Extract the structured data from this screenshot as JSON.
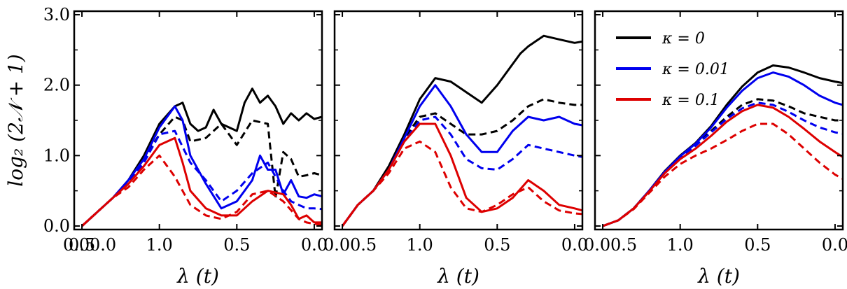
{
  "chart_data": [
    {
      "type": "line",
      "panel": "left",
      "title": "",
      "xlabel": "λ (t)",
      "ylabel": "log₂ (2𝒩 + 1)",
      "x_tick_labels": [
        "0.0",
        "0.0",
        "0.5",
        "1.0",
        "0.5",
        "0.0"
      ],
      "y_tick_labels": [
        "0.0",
        "1.0",
        "2.0",
        "3.0"
      ],
      "xlim": [
        -0.05,
        1.55
      ],
      "ylim": [
        -0.05,
        3.05
      ],
      "series": [
        {
          "name": "κ = 0 (solid)",
          "color": "#000000",
          "dash": "solid",
          "x": [
            0,
            0.1,
            0.2,
            0.3,
            0.4,
            0.5,
            0.6,
            0.65,
            0.7,
            0.75,
            0.8,
            0.85,
            0.9,
            1.0,
            1.05,
            1.1,
            1.15,
            1.2,
            1.25,
            1.3,
            1.35,
            1.4,
            1.45,
            1.5,
            1.55
          ],
          "y": [
            0,
            0.2,
            0.4,
            0.65,
            1.0,
            1.45,
            1.7,
            1.75,
            1.45,
            1.35,
            1.4,
            1.65,
            1.45,
            1.35,
            1.75,
            1.95,
            1.75,
            1.85,
            1.7,
            1.45,
            1.6,
            1.5,
            1.6,
            1.52,
            1.55
          ]
        },
        {
          "name": "κ = 0 (dashed)",
          "color": "#000000",
          "dash": "dashed",
          "x": [
            0,
            0.1,
            0.2,
            0.3,
            0.4,
            0.5,
            0.6,
            0.65,
            0.7,
            0.8,
            0.9,
            1.0,
            1.1,
            1.2,
            1.25,
            1.3,
            1.35,
            1.4,
            1.45,
            1.5,
            1.55
          ],
          "y": [
            0,
            0.2,
            0.4,
            0.6,
            0.95,
            1.3,
            1.55,
            1.5,
            1.2,
            1.25,
            1.45,
            1.15,
            1.5,
            1.45,
            0.4,
            1.05,
            0.95,
            0.7,
            0.72,
            0.75,
            0.72
          ]
        },
        {
          "name": "κ = 0.01 (solid)",
          "color": "#0000ee",
          "dash": "solid",
          "x": [
            0,
            0.1,
            0.2,
            0.3,
            0.4,
            0.5,
            0.6,
            0.65,
            0.7,
            0.8,
            0.9,
            1.0,
            1.05,
            1.1,
            1.15,
            1.2,
            1.25,
            1.3,
            1.35,
            1.4,
            1.45,
            1.5,
            1.55
          ],
          "y": [
            0,
            0.2,
            0.4,
            0.65,
            0.95,
            1.4,
            1.7,
            1.5,
            1.0,
            0.6,
            0.25,
            0.35,
            0.5,
            0.65,
            1.0,
            0.8,
            0.8,
            0.45,
            0.65,
            0.42,
            0.4,
            0.45,
            0.42
          ]
        },
        {
          "name": "κ = 0.01 (dashed)",
          "color": "#0000ee",
          "dash": "dashed",
          "x": [
            0,
            0.1,
            0.2,
            0.3,
            0.4,
            0.5,
            0.6,
            0.7,
            0.8,
            0.9,
            1.0,
            1.1,
            1.2,
            1.3,
            1.35,
            1.4,
            1.45,
            1.5,
            1.55
          ],
          "y": [
            0,
            0.2,
            0.4,
            0.6,
            0.9,
            1.3,
            1.35,
            0.9,
            0.65,
            0.35,
            0.5,
            0.75,
            0.9,
            0.5,
            0.35,
            0.3,
            0.25,
            0.25,
            0.24
          ]
        },
        {
          "name": "κ = 0.1 (solid)",
          "color": "#dd0000",
          "dash": "solid",
          "x": [
            0,
            0.1,
            0.2,
            0.3,
            0.4,
            0.5,
            0.6,
            0.65,
            0.7,
            0.8,
            0.9,
            1.0,
            1.1,
            1.2,
            1.3,
            1.35,
            1.4,
            1.45,
            1.5,
            1.55
          ],
          "y": [
            0,
            0.2,
            0.4,
            0.6,
            0.85,
            1.15,
            1.25,
            0.9,
            0.5,
            0.25,
            0.15,
            0.15,
            0.35,
            0.5,
            0.45,
            0.3,
            0.1,
            0.15,
            0.05,
            0.05
          ]
        },
        {
          "name": "κ = 0.1 (dashed)",
          "color": "#dd0000",
          "dash": "dashed",
          "x": [
            0,
            0.1,
            0.2,
            0.3,
            0.4,
            0.5,
            0.6,
            0.7,
            0.8,
            0.9,
            1.0,
            1.1,
            1.2,
            1.3,
            1.4,
            1.45,
            1.5,
            1.55
          ],
          "y": [
            0,
            0.2,
            0.4,
            0.55,
            0.8,
            1.0,
            0.7,
            0.3,
            0.15,
            0.1,
            0.2,
            0.45,
            0.5,
            0.35,
            0.1,
            0.05,
            0.03,
            0.02
          ]
        }
      ]
    },
    {
      "type": "line",
      "panel": "middle",
      "title": "",
      "xlabel": "λ (t)",
      "ylabel": "",
      "x_tick_labels": [
        "0.0",
        "0.5",
        "1.0",
        "0.5",
        "0.0"
      ],
      "xlim": [
        -0.05,
        1.55
      ],
      "ylim": [
        -0.05,
        3.05
      ],
      "series": [
        {
          "name": "κ = 0 (solid)",
          "color": "#000000",
          "dash": "solid",
          "x": [
            0,
            0.1,
            0.2,
            0.3,
            0.4,
            0.5,
            0.6,
            0.7,
            0.8,
            0.9,
            1.0,
            1.1,
            1.15,
            1.2,
            1.3,
            1.4,
            1.5,
            1.55
          ],
          "y": [
            0,
            0.3,
            0.5,
            0.85,
            1.3,
            1.8,
            2.1,
            2.05,
            1.9,
            1.75,
            2.0,
            2.3,
            2.45,
            2.55,
            2.7,
            2.65,
            2.6,
            2.62
          ]
        },
        {
          "name": "κ = 0 (dashed)",
          "color": "#000000",
          "dash": "dashed",
          "x": [
            0,
            0.1,
            0.2,
            0.3,
            0.4,
            0.5,
            0.6,
            0.7,
            0.8,
            0.9,
            1.0,
            1.1,
            1.2,
            1.3,
            1.4,
            1.5,
            1.55
          ],
          "y": [
            0,
            0.3,
            0.5,
            0.8,
            1.25,
            1.55,
            1.6,
            1.45,
            1.3,
            1.3,
            1.35,
            1.5,
            1.7,
            1.8,
            1.75,
            1.72,
            1.72
          ]
        },
        {
          "name": "κ = 0.01 (solid)",
          "color": "#0000ee",
          "dash": "solid",
          "x": [
            0,
            0.1,
            0.2,
            0.3,
            0.4,
            0.5,
            0.6,
            0.7,
            0.8,
            0.9,
            1.0,
            1.1,
            1.2,
            1.3,
            1.4,
            1.5,
            1.55
          ],
          "y": [
            0,
            0.3,
            0.5,
            0.8,
            1.25,
            1.7,
            2.0,
            1.7,
            1.3,
            1.05,
            1.05,
            1.35,
            1.55,
            1.5,
            1.55,
            1.45,
            1.43
          ]
        },
        {
          "name": "κ = 0.01 (dashed)",
          "color": "#0000ee",
          "dash": "dashed",
          "x": [
            0,
            0.1,
            0.2,
            0.3,
            0.4,
            0.5,
            0.6,
            0.7,
            0.8,
            0.9,
            1.0,
            1.1,
            1.2,
            1.3,
            1.4,
            1.5,
            1.55
          ],
          "y": [
            0,
            0.3,
            0.5,
            0.8,
            1.2,
            1.5,
            1.55,
            1.3,
            0.95,
            0.82,
            0.8,
            0.95,
            1.15,
            1.1,
            1.05,
            1.0,
            0.98
          ]
        },
        {
          "name": "κ = 0.1 (solid)",
          "color": "#dd0000",
          "dash": "solid",
          "x": [
            0,
            0.1,
            0.2,
            0.3,
            0.4,
            0.5,
            0.6,
            0.7,
            0.8,
            0.9,
            1.0,
            1.1,
            1.2,
            1.3,
            1.4,
            1.5,
            1.55
          ],
          "y": [
            0,
            0.3,
            0.5,
            0.8,
            1.2,
            1.45,
            1.45,
            1.0,
            0.4,
            0.2,
            0.25,
            0.4,
            0.65,
            0.5,
            0.3,
            0.25,
            0.22
          ]
        },
        {
          "name": "κ = 0.1 (dashed)",
          "color": "#dd0000",
          "dash": "dashed",
          "x": [
            0,
            0.1,
            0.2,
            0.3,
            0.4,
            0.5,
            0.6,
            0.7,
            0.8,
            0.9,
            1.0,
            1.1,
            1.2,
            1.3,
            1.4,
            1.5,
            1.55
          ],
          "y": [
            0,
            0.3,
            0.5,
            0.75,
            1.1,
            1.2,
            1.05,
            0.55,
            0.25,
            0.2,
            0.3,
            0.45,
            0.55,
            0.35,
            0.22,
            0.18,
            0.17
          ]
        }
      ]
    },
    {
      "type": "line",
      "panel": "right",
      "title": "",
      "xlabel": "λ (t)",
      "ylabel": "",
      "x_tick_labels": [
        "0.0",
        "0.5",
        "1.0",
        "0.5",
        "0.0"
      ],
      "xlim": [
        -0.05,
        1.55
      ],
      "ylim": [
        -0.05,
        3.05
      ],
      "legend": [
        "κ = 0",
        "κ = 0.01",
        "κ = 0.1"
      ],
      "legend_placement": "top-left",
      "series": [
        {
          "name": "κ = 0 (solid)",
          "color": "#000000",
          "dash": "solid",
          "x": [
            0,
            0.1,
            0.2,
            0.3,
            0.4,
            0.5,
            0.6,
            0.7,
            0.8,
            0.9,
            1.0,
            1.1,
            1.2,
            1.3,
            1.4,
            1.5,
            1.55
          ],
          "y": [
            0,
            0.08,
            0.25,
            0.5,
            0.78,
            1.0,
            1.18,
            1.42,
            1.72,
            1.98,
            2.18,
            2.28,
            2.25,
            2.18,
            2.1,
            2.05,
            2.03
          ]
        },
        {
          "name": "κ = 0 (dashed)",
          "color": "#000000",
          "dash": "dashed",
          "x": [
            0,
            0.1,
            0.2,
            0.3,
            0.4,
            0.5,
            0.6,
            0.7,
            0.8,
            0.9,
            1.0,
            1.1,
            1.2,
            1.3,
            1.4,
            1.5,
            1.55
          ],
          "y": [
            0,
            0.08,
            0.25,
            0.5,
            0.77,
            0.98,
            1.15,
            1.35,
            1.55,
            1.72,
            1.8,
            1.78,
            1.7,
            1.6,
            1.55,
            1.5,
            1.5
          ]
        },
        {
          "name": "κ = 0.01 (solid)",
          "color": "#0000ee",
          "dash": "solid",
          "x": [
            0,
            0.1,
            0.2,
            0.3,
            0.4,
            0.5,
            0.6,
            0.7,
            0.8,
            0.9,
            1.0,
            1.1,
            1.2,
            1.3,
            1.4,
            1.5,
            1.55
          ],
          "y": [
            0,
            0.08,
            0.25,
            0.5,
            0.77,
            0.99,
            1.17,
            1.4,
            1.68,
            1.92,
            2.1,
            2.18,
            2.12,
            2.0,
            1.85,
            1.75,
            1.72
          ]
        },
        {
          "name": "κ = 0.01 (dashed)",
          "color": "#0000ee",
          "dash": "dashed",
          "x": [
            0,
            0.1,
            0.2,
            0.3,
            0.4,
            0.5,
            0.6,
            0.7,
            0.8,
            0.9,
            1.0,
            1.1,
            1.2,
            1.3,
            1.4,
            1.5,
            1.55
          ],
          "y": [
            0,
            0.08,
            0.25,
            0.5,
            0.76,
            0.97,
            1.14,
            1.33,
            1.52,
            1.67,
            1.75,
            1.72,
            1.62,
            1.5,
            1.4,
            1.33,
            1.31
          ]
        },
        {
          "name": "κ = 0.1 (solid)",
          "color": "#dd0000",
          "dash": "solid",
          "x": [
            0,
            0.1,
            0.2,
            0.3,
            0.4,
            0.5,
            0.6,
            0.7,
            0.8,
            0.9,
            1.0,
            1.1,
            1.2,
            1.3,
            1.4,
            1.5,
            1.55
          ],
          "y": [
            0,
            0.08,
            0.25,
            0.49,
            0.75,
            0.95,
            1.1,
            1.28,
            1.48,
            1.63,
            1.72,
            1.68,
            1.55,
            1.38,
            1.2,
            1.05,
            0.98
          ]
        },
        {
          "name": "κ = 0.1 (dashed)",
          "color": "#dd0000",
          "dash": "dashed",
          "x": [
            0,
            0.1,
            0.2,
            0.3,
            0.4,
            0.5,
            0.6,
            0.7,
            0.8,
            0.9,
            1.0,
            1.1,
            1.2,
            1.3,
            1.4,
            1.5,
            1.55
          ],
          "y": [
            0,
            0.08,
            0.24,
            0.47,
            0.7,
            0.88,
            1.0,
            1.1,
            1.22,
            1.35,
            1.45,
            1.45,
            1.3,
            1.1,
            0.9,
            0.73,
            0.67
          ]
        }
      ]
    }
  ]
}
